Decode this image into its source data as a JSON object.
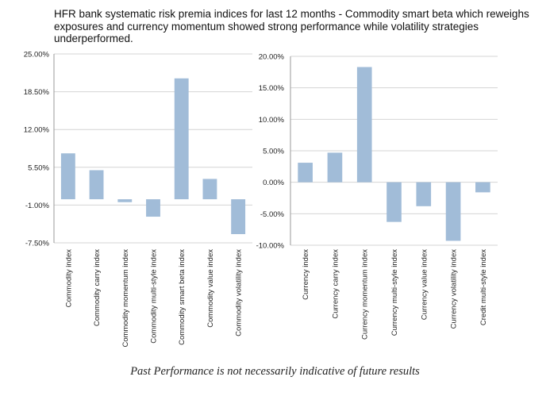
{
  "header": {
    "title": "HFR bank systematic risk premia indices for last 12 months - Commodity smart beta which reweighs exposures and currency momentum showed strong performance while volatility strategies underperformed."
  },
  "footer": {
    "disclaimer": "Past Performance is not necessarily indicative of future results"
  },
  "colors": {
    "bar": "#a1bcd8",
    "grid": "#d4d4d4",
    "axis": "#9a9a9a"
  },
  "chart_data": [
    {
      "type": "bar",
      "categories": [
        "Commodity index",
        "Commodity carry index",
        "Commodity momentum  index",
        "Commodity multi-style index",
        "Commodity smart beta index",
        "Commodity value index",
        "Commodity volatility index"
      ],
      "values": [
        7.9,
        5.0,
        -0.5,
        -3.0,
        20.8,
        3.5,
        -6.0
      ],
      "ylim": [
        -7.5,
        25
      ],
      "yticks": [
        -7.5,
        -1,
        5.5,
        12,
        18.5,
        25
      ],
      "yticklabels": [
        "-7.50%",
        "-1.00%",
        "5.50%",
        "12.00%",
        "18.50%",
        "25.00%"
      ],
      "grid": true,
      "title": "",
      "xlabel": "",
      "ylabel": ""
    },
    {
      "type": "bar",
      "categories": [
        "Currency index",
        "Currency carry index",
        "Currency momentum index",
        "Currency multi-style index",
        "Currency value index",
        "Currency volatility index",
        "Credit multi-style index"
      ],
      "values": [
        3.1,
        4.7,
        18.3,
        -6.3,
        -3.8,
        -9.3,
        -1.6
      ],
      "ylim": [
        -10,
        20
      ],
      "yticks": [
        -10,
        -5,
        0,
        5,
        10,
        15,
        20
      ],
      "yticklabels": [
        "-10.00%",
        "-5.00%",
        "0.00%",
        "5.00%",
        "10.00%",
        "15.00%",
        "20.00%"
      ],
      "grid": true,
      "title": "",
      "xlabel": "",
      "ylabel": ""
    }
  ]
}
